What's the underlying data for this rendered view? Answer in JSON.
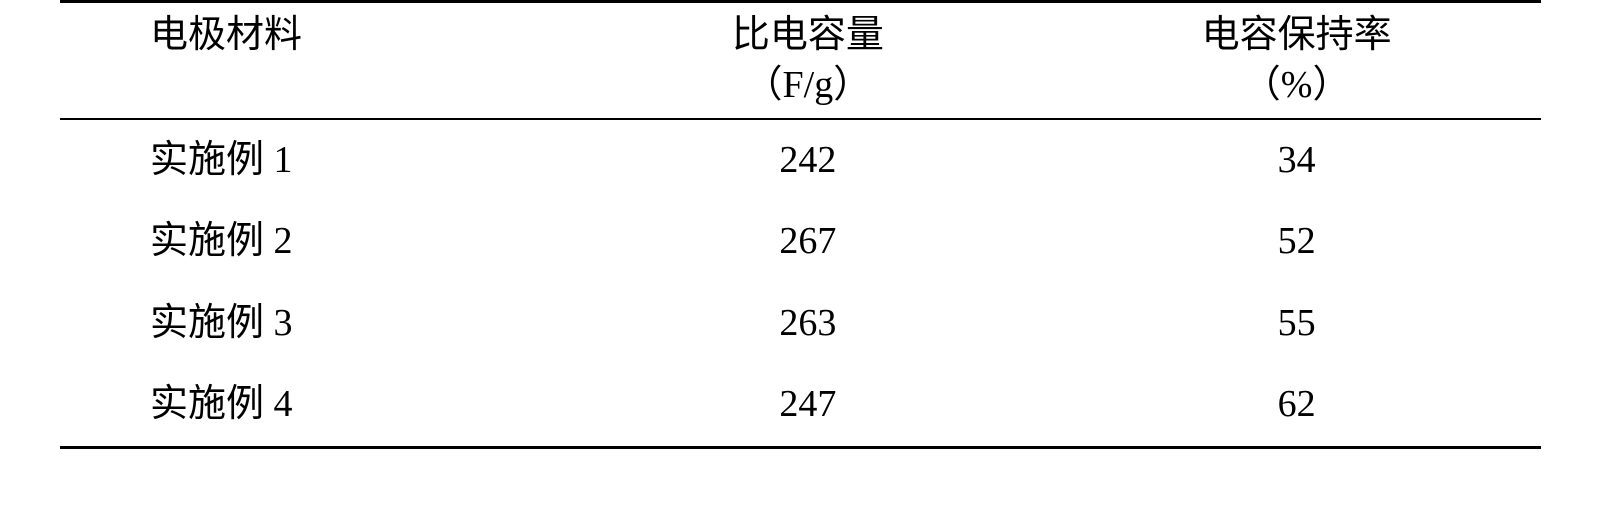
{
  "table": {
    "columns": [
      {
        "label": "电极材料",
        "sublabel": ""
      },
      {
        "label": "比电容量",
        "sublabel": "（F/g）"
      },
      {
        "label": "电容保持率",
        "sublabel": "（%）"
      }
    ],
    "rows": [
      [
        "实施例 1",
        "242",
        "34"
      ],
      [
        "实施例 2",
        "267",
        "52"
      ],
      [
        "实施例 3",
        "263",
        "55"
      ],
      [
        "实施例 4",
        "247",
        "62"
      ]
    ],
    "text_color": "#000000",
    "background_color": "#ffffff",
    "border_color": "#000000",
    "font_size_pt": 28
  }
}
